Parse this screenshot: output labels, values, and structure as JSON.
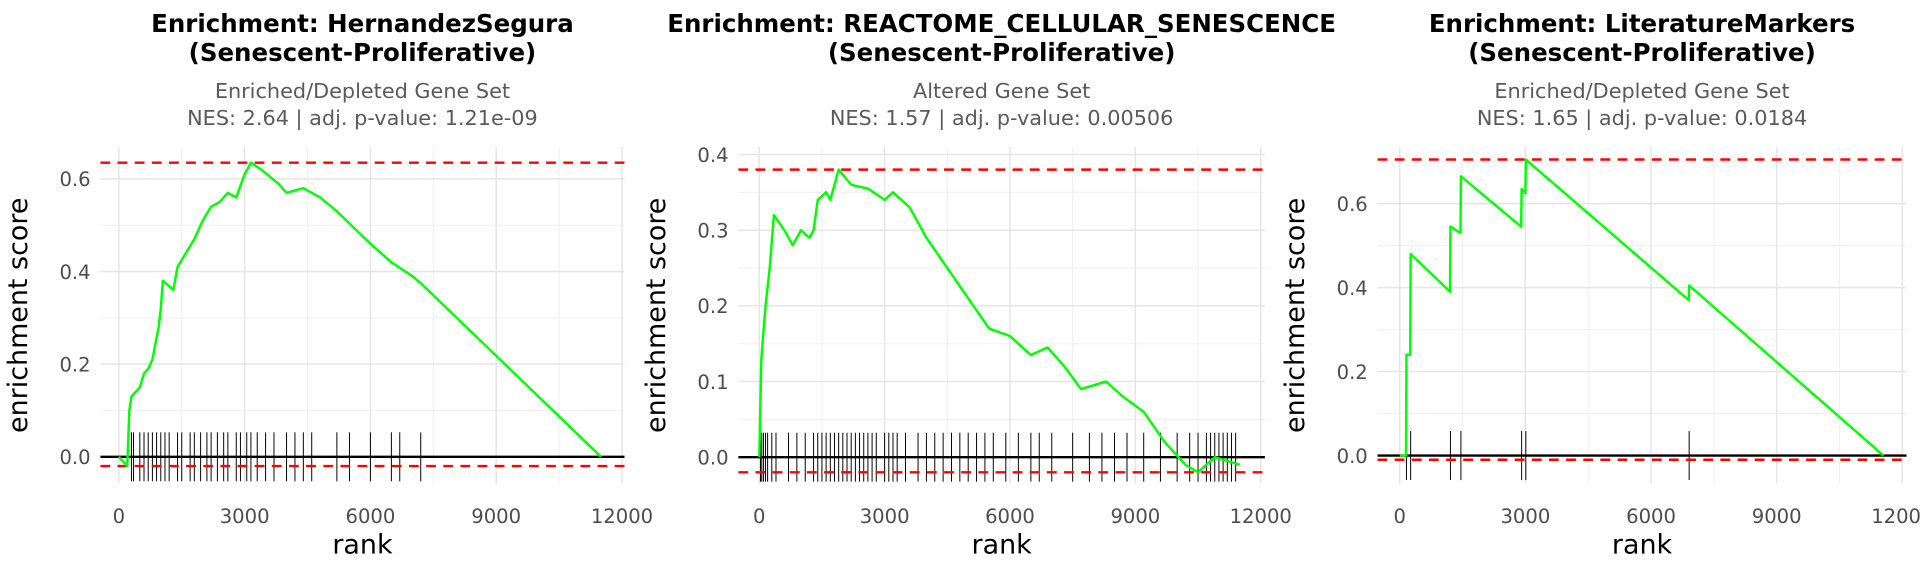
{
  "chart_data": [
    {
      "type": "line",
      "title": [
        "Enrichment: HernandezSegura",
        "(Senescent-Proliferative)"
      ],
      "subtitle": [
        "Enriched/Depleted Gene Set",
        "NES: 2.64 | adj. p-value: 1.21e-09"
      ],
      "x_label": "rank",
      "y_label": "enrichment score",
      "xlim": [
        -440,
        12060
      ],
      "ylim": [
        -0.058,
        0.669
      ],
      "xticks": [
        0,
        3000,
        6000,
        9000,
        12000
      ],
      "yticks": [
        {
          "value": 0,
          "label": "0.0"
        },
        0.2,
        0.4,
        0.6
      ],
      "grid": true,
      "series": [
        {
          "color": "#00ff00",
          "x": [
            0,
            200,
            250,
            300,
            500,
            600,
            700,
            800,
            950,
            1000,
            1050,
            1300,
            1400,
            1600,
            1800,
            2000,
            2200,
            2400,
            2600,
            2800,
            3000,
            3150,
            3400,
            3800,
            4000,
            4400,
            4800,
            5200,
            6000,
            6500,
            7000,
            7200,
            11500
          ],
          "values": [
            0,
            -0.02,
            0.1,
            0.13,
            0.15,
            0.18,
            0.19,
            0.21,
            0.28,
            0.32,
            0.38,
            0.36,
            0.41,
            0.44,
            0.47,
            0.51,
            0.54,
            0.55,
            0.57,
            0.56,
            0.61,
            0.635,
            0.62,
            0.59,
            0.57,
            0.58,
            0.56,
            0.53,
            0.46,
            0.42,
            0.39,
            0.375,
            0
          ]
        }
      ],
      "hits": [
        300,
        350,
        500,
        600,
        700,
        800,
        900,
        1000,
        1100,
        1200,
        1400,
        1500,
        1700,
        1800,
        1950,
        2100,
        2200,
        2350,
        2500,
        2600,
        2800,
        2900,
        3050,
        3150,
        3300,
        3500,
        3700,
        4000,
        4200,
        4400,
        4600,
        5200,
        5500,
        6000,
        6500,
        6700,
        7200
      ],
      "hit_color": "#000000",
      "reference_lines": [
        0.635,
        -0.02
      ],
      "reference_color": "#ff0000"
    },
    {
      "type": "line",
      "title": [
        "Enrichment: REACTOME_CELLULAR_SENESCENCE",
        "(Senescent-Proliferative)"
      ],
      "subtitle": [
        "Altered Gene Set",
        "NES: 1.57 | adj. p-value: 0.00506"
      ],
      "x_label": "rank",
      "y_label": "enrichment score",
      "xlim": [
        -500,
        12100
      ],
      "ylim": [
        -0.035,
        0.41
      ],
      "xticks": [
        0,
        3000,
        6000,
        9000,
        12000
      ],
      "yticks": [
        {
          "value": 0,
          "label": "0.0"
        },
        0.1,
        0.2,
        0.3,
        0.4
      ],
      "grid": true,
      "series": [
        {
          "color": "#00ff00",
          "x": [
            0,
            50,
            150,
            250,
            350,
            600,
            800,
            1000,
            1200,
            1300,
            1400,
            1600,
            1700,
            1900,
            2200,
            2600,
            3000,
            3200,
            3600,
            4000,
            4500,
            5000,
            5500,
            6000,
            6500,
            6900,
            7300,
            7700,
            8000,
            8300,
            8700,
            9200,
            9700,
            10200,
            10500,
            10900,
            11200,
            11500
          ],
          "values": [
            0,
            0.13,
            0.2,
            0.25,
            0.32,
            0.3,
            0.28,
            0.3,
            0.29,
            0.3,
            0.34,
            0.35,
            0.34,
            0.38,
            0.36,
            0.355,
            0.34,
            0.35,
            0.33,
            0.29,
            0.25,
            0.21,
            0.17,
            0.16,
            0.135,
            0.145,
            0.12,
            0.09,
            0.095,
            0.1,
            0.08,
            0.06,
            0.02,
            -0.01,
            -0.02,
            0,
            -0.005,
            -0.01
          ]
        }
      ],
      "hits": [
        30,
        60,
        100,
        150,
        200,
        300,
        400,
        700,
        900,
        1100,
        1300,
        1400,
        1500,
        1600,
        1700,
        1800,
        1900,
        2000,
        2100,
        2200,
        2300,
        2400,
        2500,
        2600,
        2700,
        2800,
        3000,
        3100,
        3200,
        3300,
        3500,
        3800,
        4000,
        4200,
        4400,
        4600,
        4800,
        5000,
        5200,
        5400,
        5600,
        5900,
        6200,
        6500,
        6700,
        7000,
        7500,
        7900,
        8200,
        8500,
        8800,
        9200,
        9600,
        10000,
        10300,
        10500,
        10700,
        10800,
        10900,
        11000,
        11100,
        11200,
        11300,
        11400
      ],
      "hit_color": "#000000",
      "reference_lines": [
        0.38,
        -0.02
      ],
      "reference_color": "#ff0000"
    },
    {
      "type": "line",
      "title": [
        "Enrichment: LiteratureMarkers",
        "(Senescent-Proliferative)"
      ],
      "subtitle": [
        "Enriched/Depleted Gene Set",
        "NES: 1.65 | adj. p-value: 0.0184"
      ],
      "x_label": "rank",
      "y_label": "enrichment score",
      "xlim": [
        -530,
        12100
      ],
      "ylim": [
        -0.067,
        0.735
      ],
      "xticks": [
        0,
        3000,
        6000,
        9000,
        12000
      ],
      "yticks": [
        {
          "value": 0,
          "label": "0.0"
        },
        0.2,
        0.4,
        0.6
      ],
      "grid": true,
      "series": [
        {
          "color": "#00ff00",
          "x": [
            0,
            150,
            160,
            250,
            260,
            1200,
            1210,
            1450,
            1460,
            2900,
            2910,
            3000,
            3010,
            6900,
            6910,
            11550
          ],
          "values": [
            0,
            0,
            0.24,
            0.24,
            0.48,
            0.39,
            0.545,
            0.53,
            0.665,
            0.545,
            0.635,
            0.625,
            0.705,
            0.37,
            0.405,
            0
          ]
        }
      ],
      "hits": [
        160,
        260,
        1210,
        1460,
        2910,
        3010,
        6910
      ],
      "hit_color": "#000000",
      "reference_lines": [
        0.705,
        -0.01
      ],
      "reference_color": "#ff0000"
    }
  ]
}
